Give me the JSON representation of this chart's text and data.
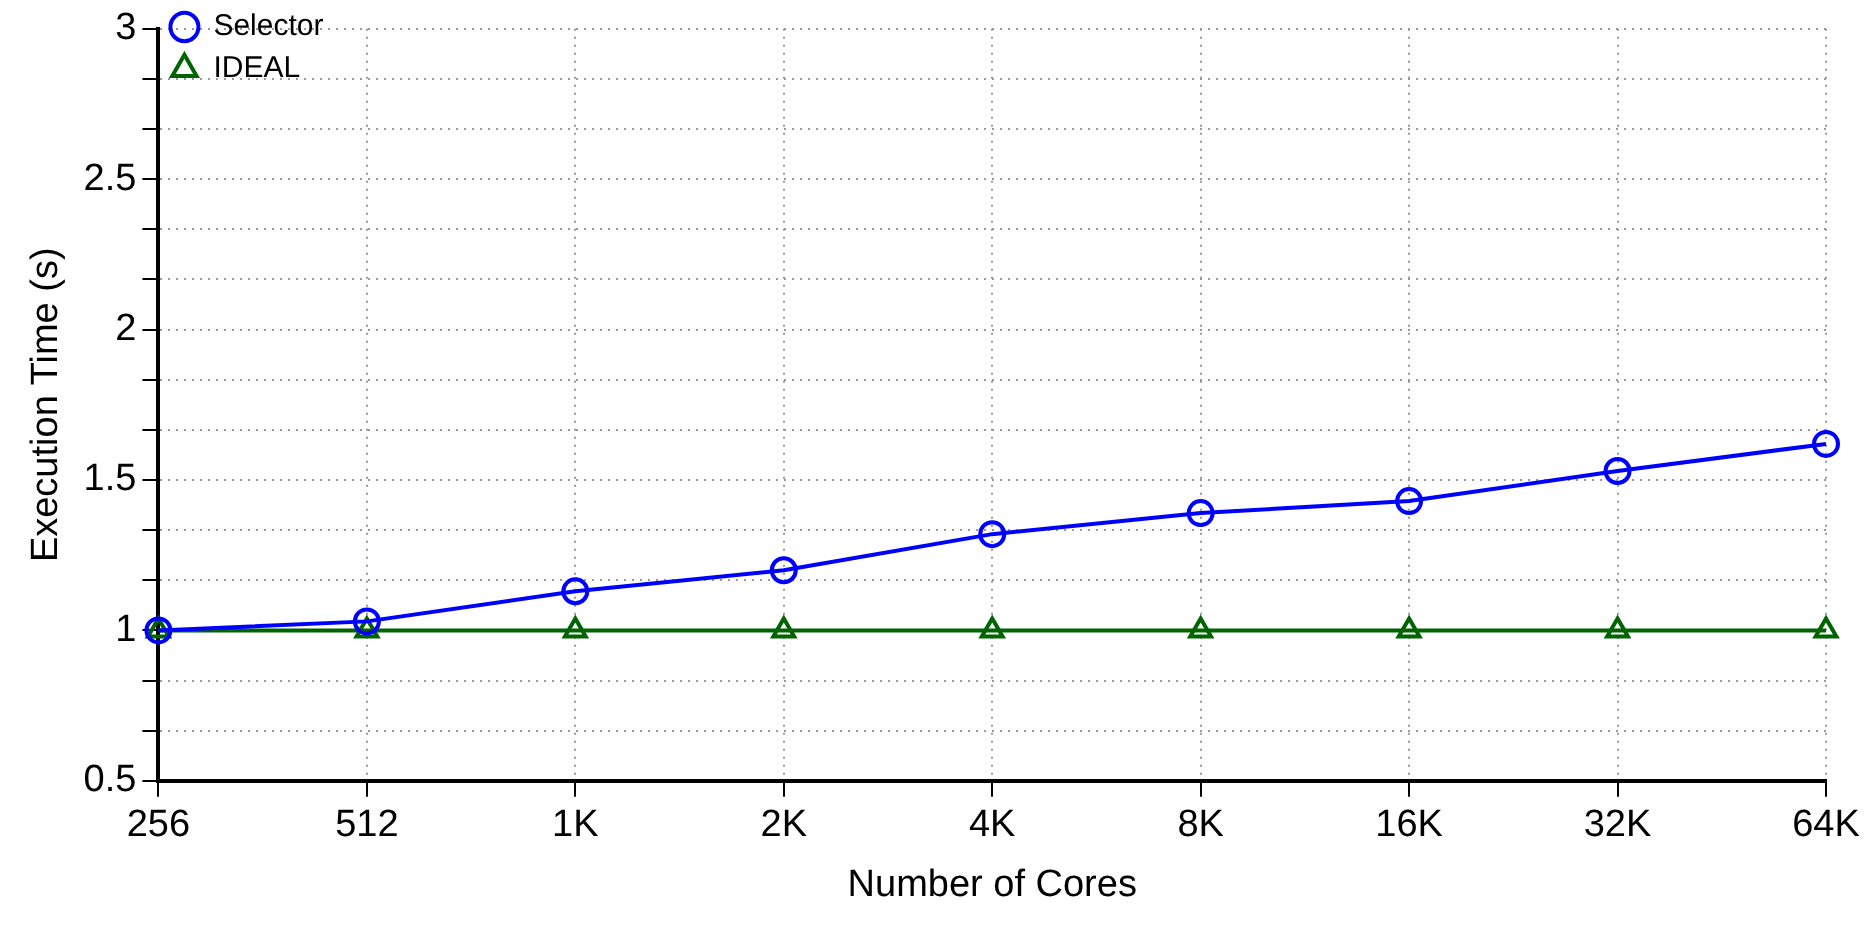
{
  "chart_data": {
    "type": "line",
    "xlabel": "Number of Cores",
    "ylabel": "Execution Time (s)",
    "categories": [
      "256",
      "512",
      "1K",
      "2K",
      "4K",
      "8K",
      "16K",
      "32K",
      "64K"
    ],
    "series": [
      {
        "name": "Selector",
        "color": "#0000ff",
        "marker": "circle",
        "values": [
          1.0,
          1.03,
          1.13,
          1.2,
          1.32,
          1.39,
          1.43,
          1.53,
          1.62
        ]
      },
      {
        "name": "IDEAL",
        "color": "#006400",
        "marker": "triangle",
        "values": [
          1,
          1,
          1,
          1,
          1,
          1,
          1,
          1,
          1
        ]
      }
    ],
    "ylim": [
      0.5,
      3
    ],
    "yticks": [
      0.5,
      {
        "value": 0.667,
        "label": null
      },
      {
        "value": 0.833,
        "label": null
      },
      1,
      {
        "value": 1.167,
        "label": null
      },
      {
        "value": 1.333,
        "label": null
      },
      1.5,
      {
        "value": 1.667,
        "label": null
      },
      {
        "value": 1.833,
        "label": null
      },
      2,
      {
        "value": 2.167,
        "label": null
      },
      {
        "value": 2.333,
        "label": null
      },
      2.5,
      {
        "value": 2.667,
        "label": null
      },
      {
        "value": 2.833,
        "label": null
      },
      3
    ],
    "grid": true,
    "legend": "top left",
    "line_style": "solid"
  }
}
